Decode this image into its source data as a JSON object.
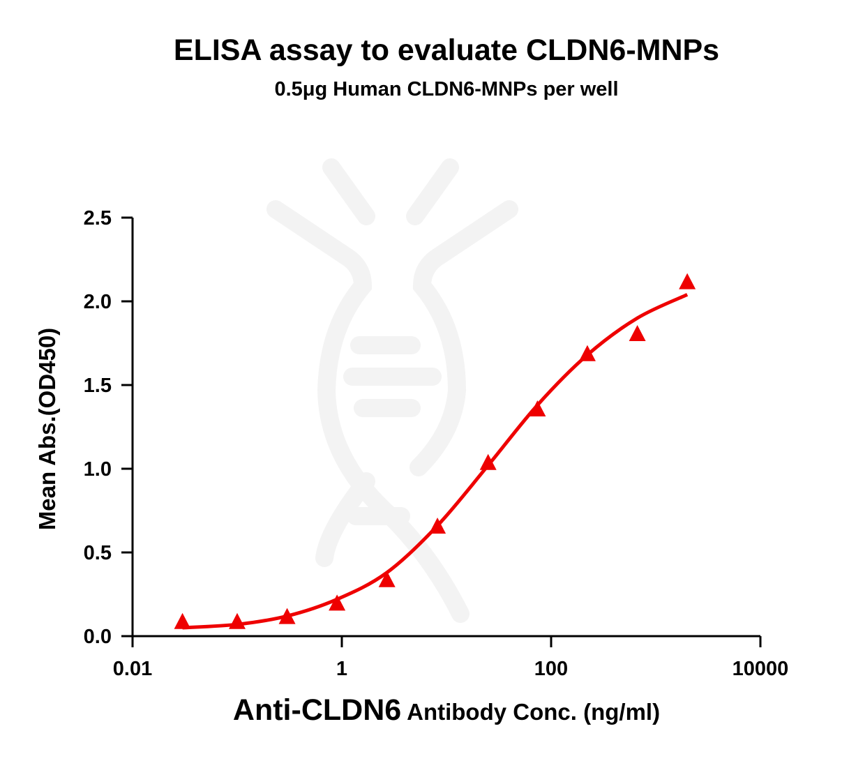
{
  "chart_data": {
    "type": "scatter",
    "title": "ELISA assay to evaluate CLDN6-MNPs",
    "subtitle": "0.5μg Human CLDN6-MNPs per well",
    "xlabel_main": "Anti-CLDN6",
    "xlabel_rest": " Antibody Conc. (ng/ml)",
    "ylabel": "Mean Abs.(OD450)",
    "xscale": "log",
    "xlim": [
      0.01,
      10000
    ],
    "ylim": [
      0,
      2.5
    ],
    "xticks": [
      "0.01",
      "1",
      "100",
      "10000"
    ],
    "yticks": [
      "0.0",
      "0.5",
      "1.0",
      "1.5",
      "2.0",
      "2.5"
    ],
    "grid": false,
    "marker": "triangle",
    "color": "#ee0000",
    "points": {
      "x": [
        0.03,
        0.1,
        0.3,
        0.9,
        2.7,
        8.2,
        25,
        74,
        222,
        667,
        2000
      ],
      "y": [
        0.08,
        0.08,
        0.11,
        0.19,
        0.33,
        0.65,
        1.03,
        1.35,
        1.68,
        1.8,
        2.11
      ]
    },
    "fit_curve": {
      "x": [
        0.03,
        0.1,
        0.3,
        0.9,
        2.7,
        8.2,
        25,
        74,
        222,
        667,
        2000
      ],
      "y": [
        0.05,
        0.07,
        0.12,
        0.22,
        0.38,
        0.66,
        1.02,
        1.38,
        1.68,
        1.9,
        2.04
      ]
    }
  }
}
